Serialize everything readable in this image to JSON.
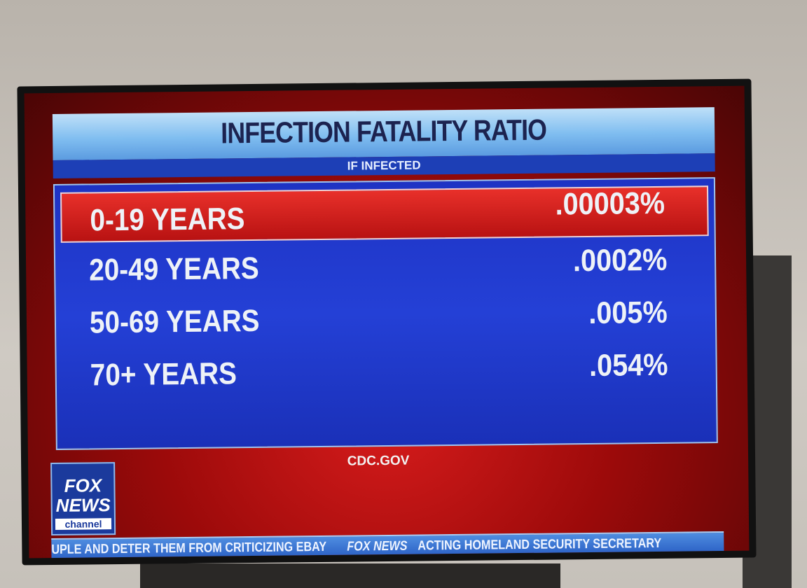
{
  "header": {
    "title": "INFECTION FATALITY RATIO",
    "subtitle": "IF INFECTED"
  },
  "table": {
    "rows": [
      [
        "0-19 YEARS",
        ".00003%"
      ],
      [
        "20-49 YEARS",
        ".0002%"
      ],
      [
        "50-69 YEARS",
        ".005%"
      ],
      [
        "70+ YEARS",
        ".054%"
      ]
    ]
  },
  "source": "CDC.GOV",
  "logo": {
    "line1": "FOX",
    "line2": "NEWS",
    "line3": "channel"
  },
  "ticker": {
    "left": "UPLE AND DETER THEM FROM CRITICIZING EBAY",
    "brand": "FOX NEWS",
    "right": "ACTING HOMELAND SECURITY SECRETARY"
  }
}
